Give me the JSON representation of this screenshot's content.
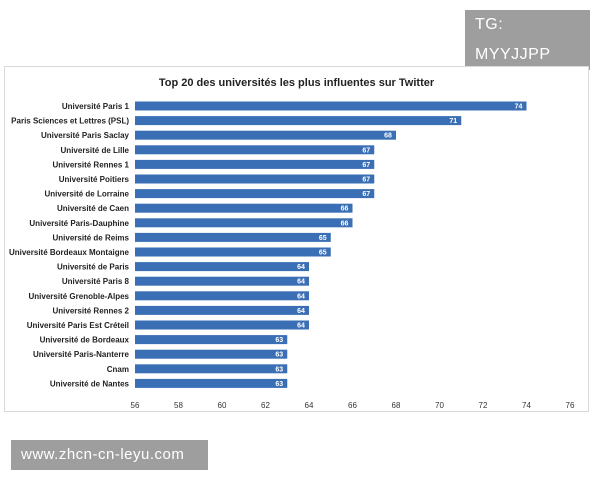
{
  "watermarks": {
    "top": "TG: MYYJJPP",
    "bottom": "www.zhcn-cn-leyu.com"
  },
  "chart_data": {
    "type": "bar",
    "orientation": "horizontal",
    "title": "Top 20 des universités les plus influentes sur Twitter",
    "categories": [
      "Université Paris 1",
      "Paris Sciences et Lettres (PSL)",
      "Université Paris Saclay",
      "Université de Lille",
      "Université Rennes 1",
      "Université Poitiers",
      "Université de Lorraine",
      "Université de Caen",
      "Université Paris-Dauphine",
      "Université de Reims",
      "Université Bordeaux Montaigne",
      "Université de Paris",
      "Université Paris 8",
      "Université Grenoble-Alpes",
      "Université Rennes 2",
      "Université Paris Est Créteil",
      "Université de Bordeaux",
      "Université Paris-Nanterre",
      "Cnam",
      "Université de Nantes"
    ],
    "values": [
      74,
      71,
      68,
      67,
      67,
      67,
      67,
      66,
      66,
      65,
      65,
      64,
      64,
      64,
      64,
      64,
      63,
      63,
      63,
      63
    ],
    "xlim": [
      56,
      76
    ],
    "xticks": [
      56,
      58,
      60,
      62,
      64,
      66,
      68,
      70,
      72,
      74,
      76
    ],
    "grid": false,
    "bar_color": "#3a6fb5",
    "data_labels": true
  }
}
